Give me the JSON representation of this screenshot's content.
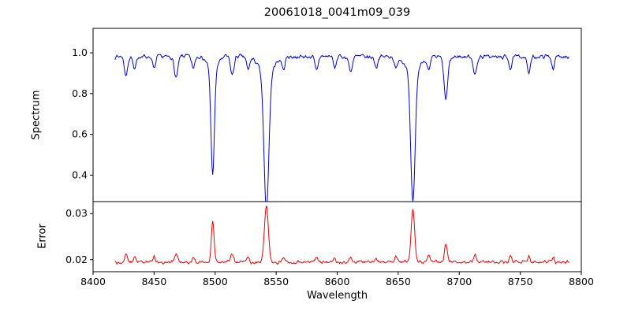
{
  "title": "20061018_0041m09_039",
  "axes": {
    "xlabel": "Wavelength",
    "spectrum_ylabel": "Spectrum",
    "error_ylabel": "Error"
  },
  "chart_data": {
    "type": "line",
    "title": "20061018_0041m09_039",
    "xlabel": "Wavelength",
    "panels": [
      {
        "name": "spectrum",
        "ylabel": "Spectrum",
        "ylim": [
          0.27,
          1.12
        ],
        "yticks": [
          0.4,
          0.6,
          0.8,
          1.0
        ]
      },
      {
        "name": "error",
        "ylabel": "Error",
        "ylim": [
          0.0174,
          0.0326
        ],
        "yticks": [
          0.02,
          0.03
        ]
      }
    ],
    "xlim": [
      8400,
      8800
    ],
    "xticks": [
      8400,
      8450,
      8500,
      8550,
      8600,
      8650,
      8700,
      8750,
      8800
    ],
    "x_range": [
      8418,
      8790
    ],
    "x_step": 0.5,
    "seed": 7,
    "grid": false,
    "legend": "none",
    "spectrum_series": {
      "name": "spectrum",
      "color": "#0000dd",
      "continuum": 0.982,
      "noise_amp": 0.014,
      "slow_amp": 0.012,
      "absorption_lines": [
        {
          "center": 8498,
          "depth": 0.512,
          "width": 1.4,
          "wing": 0.12
        },
        {
          "center": 8542,
          "depth": 0.672,
          "width": 2.0,
          "wing": 0.12
        },
        {
          "center": 8662,
          "depth": 0.642,
          "width": 1.8,
          "wing": 0.12
        },
        {
          "center": 8689,
          "depth": 0.2,
          "width": 1.5,
          "wing": 0.05
        },
        {
          "center": 8427,
          "depth": 0.1,
          "width": 1.3,
          "wing": 0
        },
        {
          "center": 8434,
          "depth": 0.07,
          "width": 1.2,
          "wing": 0
        },
        {
          "center": 8450,
          "depth": 0.06,
          "width": 1.2,
          "wing": 0
        },
        {
          "center": 8468,
          "depth": 0.11,
          "width": 1.5,
          "wing": 0
        },
        {
          "center": 8482,
          "depth": 0.06,
          "width": 1.2,
          "wing": 0
        },
        {
          "center": 8514,
          "depth": 0.09,
          "width": 1.4,
          "wing": 0
        },
        {
          "center": 8527,
          "depth": 0.06,
          "width": 1.2,
          "wing": 0
        },
        {
          "center": 8556,
          "depth": 0.06,
          "width": 1.2,
          "wing": 0
        },
        {
          "center": 8583,
          "depth": 0.07,
          "width": 1.3,
          "wing": 0
        },
        {
          "center": 8598,
          "depth": 0.06,
          "width": 1.2,
          "wing": 0
        },
        {
          "center": 8611,
          "depth": 0.07,
          "width": 1.3,
          "wing": 0
        },
        {
          "center": 8632,
          "depth": 0.05,
          "width": 1.2,
          "wing": 0
        },
        {
          "center": 8648,
          "depth": 0.06,
          "width": 1.2,
          "wing": 0
        },
        {
          "center": 8675,
          "depth": 0.07,
          "width": 1.3,
          "wing": 0
        },
        {
          "center": 8713,
          "depth": 0.09,
          "width": 1.4,
          "wing": 0
        },
        {
          "center": 8742,
          "depth": 0.06,
          "width": 1.2,
          "wing": 0
        },
        {
          "center": 8757,
          "depth": 0.08,
          "width": 1.3,
          "wing": 0
        },
        {
          "center": 8777,
          "depth": 0.06,
          "width": 1.2,
          "wing": 0
        }
      ],
      "notable_minima": [
        {
          "x": 8498,
          "y": 0.47
        },
        {
          "x": 8542,
          "y": 0.31
        },
        {
          "x": 8662,
          "y": 0.34
        },
        {
          "x": 8689,
          "y": 0.78
        }
      ]
    },
    "error_series": {
      "name": "error",
      "color": "#ee0000",
      "baseline": 0.0195,
      "noise_amp": 0.0005,
      "slow_amp": 0.0003,
      "spike_scale": 0.018,
      "spike_width_factor": 0.8,
      "notable_peaks": [
        {
          "x": 8498,
          "y": 0.028
        },
        {
          "x": 8542,
          "y": 0.032
        },
        {
          "x": 8662,
          "y": 0.0315
        }
      ]
    }
  }
}
